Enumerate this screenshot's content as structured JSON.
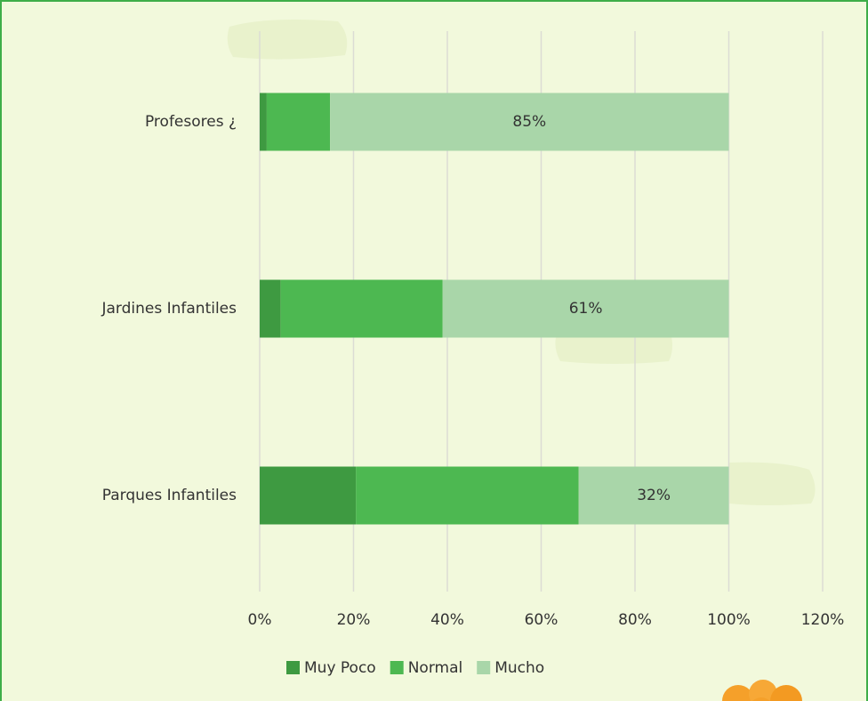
{
  "chart_data": {
    "type": "stacked-bar-horizontal",
    "categories": [
      "Profesores ¿",
      "Jardines Infantiles",
      "Parques Infantiles"
    ],
    "series": [
      {
        "name": "Muy Poco",
        "color": "#3e9a41",
        "values": [
          1.5,
          4.5,
          20.5
        ]
      },
      {
        "name": "Normal",
        "color": "#4db851",
        "values": [
          13.5,
          34.5,
          47.5
        ]
      },
      {
        "name": "Mucho",
        "color": "#a9d6a9",
        "values": [
          85,
          61,
          32
        ],
        "value_labels": [
          "85%",
          "61%",
          "32%"
        ]
      }
    ],
    "xlim": [
      0,
      120
    ],
    "xticks": [
      {
        "value": 0,
        "label": "0%"
      },
      {
        "value": 20,
        "label": "20%"
      },
      {
        "value": 40,
        "label": "40%"
      },
      {
        "value": 60,
        "label": "60%"
      },
      {
        "value": 80,
        "label": "80%"
      },
      {
        "value": 100,
        "label": "100%"
      },
      {
        "value": 120,
        "label": "120%"
      }
    ],
    "grid": true,
    "legend": "bottom"
  }
}
